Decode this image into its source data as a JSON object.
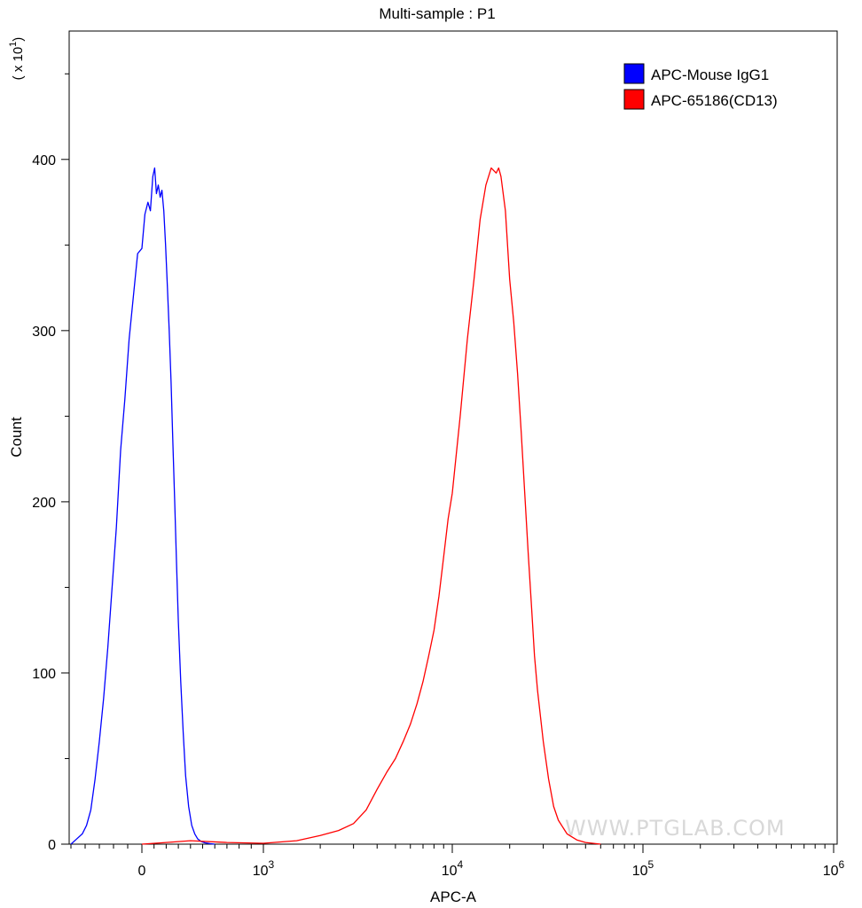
{
  "chart_data": {
    "type": "line",
    "title": "Multi-sample : P1",
    "xlabel": "APC-A",
    "ylabel": "Count",
    "y_multiplier_label": "( x 10",
    "y_multiplier_exp": "1",
    "ylim": [
      0,
      4750
    ],
    "y_ticks": [
      0,
      1000,
      2000,
      3000,
      4000
    ],
    "y_tick_labels": [
      "0",
      "100",
      "200",
      "300",
      "400"
    ],
    "x_scale": "biexponential",
    "x_ticks": [
      {
        "value": 0,
        "base": "0",
        "exp": ""
      },
      {
        "value": 1000,
        "base": "10",
        "exp": "3"
      },
      {
        "value": 10000,
        "base": "10",
        "exp": "4"
      },
      {
        "value": 100000,
        "base": "10",
        "exp": "5"
      },
      {
        "value": 1000000,
        "base": "10",
        "exp": "6"
      }
    ],
    "grid": false,
    "legend_position": "top-right",
    "watermark": "WWW.PTGLAB.COM",
    "series": [
      {
        "name": "APC-Mouse IgG1",
        "color": "#0000ff",
        "x": [
          -500,
          -460,
          -420,
          -390,
          -360,
          -330,
          -300,
          -270,
          -240,
          -210,
          -180,
          -150,
          -120,
          -90,
          -60,
          -30,
          0,
          25,
          50,
          70,
          90,
          105,
          120,
          135,
          150,
          165,
          180,
          195,
          210,
          225,
          240,
          255,
          270,
          285,
          300,
          320,
          340,
          360,
          385,
          410,
          435,
          460,
          490,
          520,
          560,
          600
        ],
        "y": [
          0,
          30,
          60,
          110,
          200,
          380,
          600,
          850,
          1150,
          1500,
          1850,
          2300,
          2600,
          2950,
          3200,
          3450,
          3480,
          3680,
          3750,
          3700,
          3900,
          3950,
          3800,
          3850,
          3780,
          3820,
          3700,
          3500,
          3250,
          3000,
          2700,
          2350,
          2000,
          1650,
          1300,
          950,
          650,
          400,
          220,
          110,
          60,
          30,
          15,
          8,
          3,
          0
        ]
      },
      {
        "name": "APC-65186(CD13)",
        "color": "#ff0000",
        "x": [
          0,
          200,
          400,
          700,
          1000,
          1500,
          2000,
          2500,
          3000,
          3500,
          4000,
          4500,
          5000,
          5500,
          6000,
          6500,
          7000,
          7500,
          8000,
          8500,
          9000,
          9500,
          10000,
          11000,
          12000,
          13000,
          14000,
          15000,
          16000,
          17000,
          17500,
          18000,
          19000,
          20000,
          21000,
          22000,
          23000,
          24000,
          25000,
          26000,
          27000,
          28000,
          30000,
          32000,
          34000,
          36000,
          40000,
          45000,
          50000,
          60000
        ],
        "y": [
          0,
          10,
          20,
          10,
          5,
          20,
          50,
          80,
          120,
          200,
          320,
          420,
          500,
          600,
          700,
          820,
          950,
          1100,
          1250,
          1450,
          1680,
          1900,
          2050,
          2500,
          2950,
          3300,
          3650,
          3850,
          3950,
          3920,
          3950,
          3900,
          3700,
          3300,
          3050,
          2750,
          2400,
          2050,
          1700,
          1400,
          1100,
          900,
          600,
          380,
          220,
          140,
          60,
          25,
          10,
          0
        ]
      }
    ]
  }
}
